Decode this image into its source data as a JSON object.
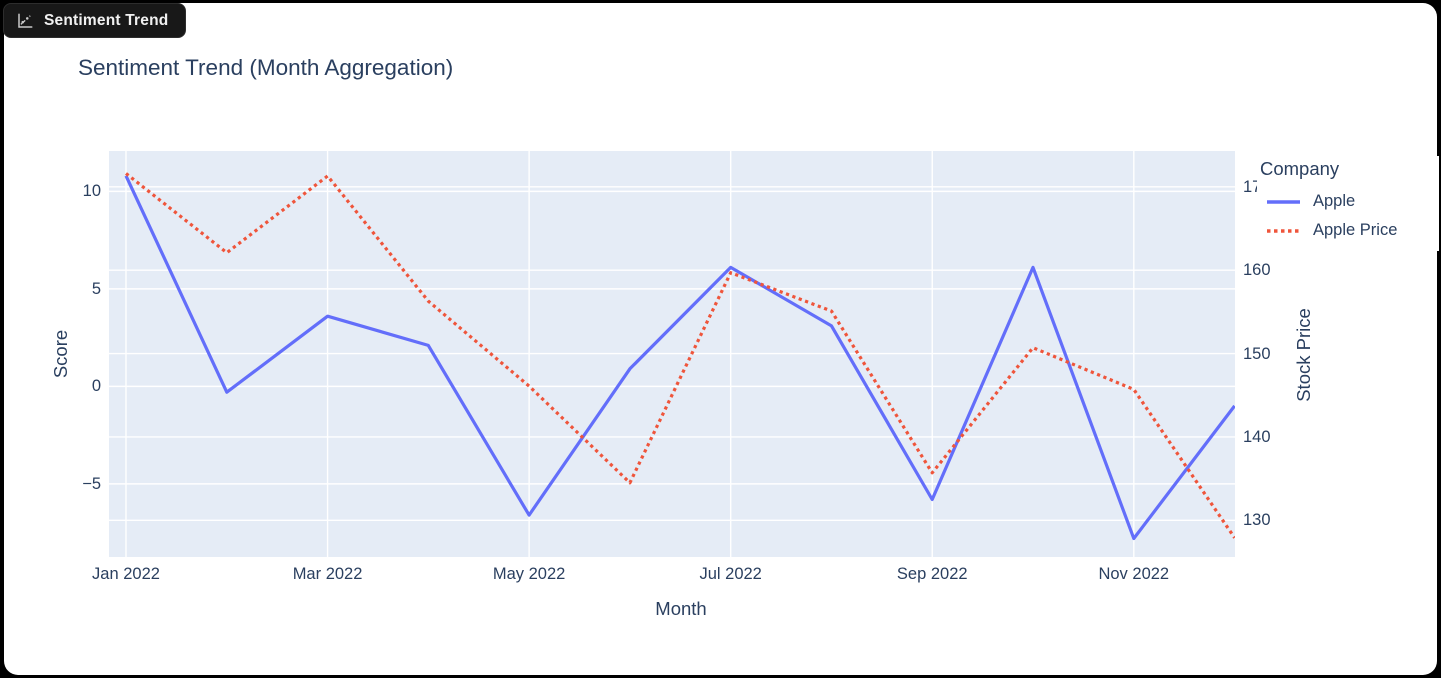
{
  "window": {
    "tab_label": "Sentiment Trend"
  },
  "colors": {
    "page_bg": "#000000",
    "card_bg": "#FFFFFF",
    "tab_bg": "#181818",
    "tab_text": "#F1F1F1",
    "plot_bg": "#E5ECF6",
    "grid": "#FFFFFF",
    "text": "#2A3F5F",
    "apple_line": "#636EFA",
    "apple_price_line": "#EF553B"
  },
  "chart_data": {
    "type": "line",
    "title": "Sentiment Trend (Month Aggregation)",
    "xlabel": "Month",
    "ylabel": "Score",
    "y2label": "Stock Price",
    "legend_title": "Company",
    "legend_position": "right",
    "grid": "on",
    "x": [
      "Jan 2022",
      "Feb 2022",
      "Mar 2022",
      "Apr 2022",
      "May 2022",
      "Jun 2022",
      "Jul 2022",
      "Aug 2022",
      "Sep 2022",
      "Oct 2022",
      "Nov 2022",
      "Dec 2022"
    ],
    "x_ticks": {
      "indices": [
        0,
        2,
        4,
        6,
        8,
        10
      ],
      "labels": [
        "Jan 2022",
        "Mar 2022",
        "May 2022",
        "Jul 2022",
        "Sep 2022",
        "Nov 2022"
      ]
    },
    "series": [
      {
        "name": "Apple",
        "axis": "left",
        "style": "solid",
        "color": "#636EFA",
        "values": [
          10.8,
          -0.3,
          3.6,
          2.1,
          -6.6,
          0.9,
          6.1,
          3.1,
          -5.8,
          6.1,
          -7.8,
          -1.0
        ]
      },
      {
        "name": "Apple Price",
        "axis": "right",
        "style": "dotted",
        "color": "#EF553B",
        "values": [
          171.6,
          162.1,
          171.3,
          156.3,
          146.1,
          134.5,
          159.7,
          155.1,
          135.7,
          150.7,
          145.7,
          127.9
        ]
      }
    ],
    "yaxis": {
      "range": [
        -8.75,
        12.07
      ],
      "ticks": [
        10,
        5,
        0,
        -5
      ],
      "tick_labels": [
        "10",
        "5",
        "0",
        "−5"
      ]
    },
    "y2axis": {
      "range": [
        125.6,
        174.3
      ],
      "ticks": [
        170,
        160,
        150,
        140,
        130
      ],
      "tick_labels": [
        "170",
        "160",
        "150",
        "140",
        "130"
      ]
    }
  }
}
